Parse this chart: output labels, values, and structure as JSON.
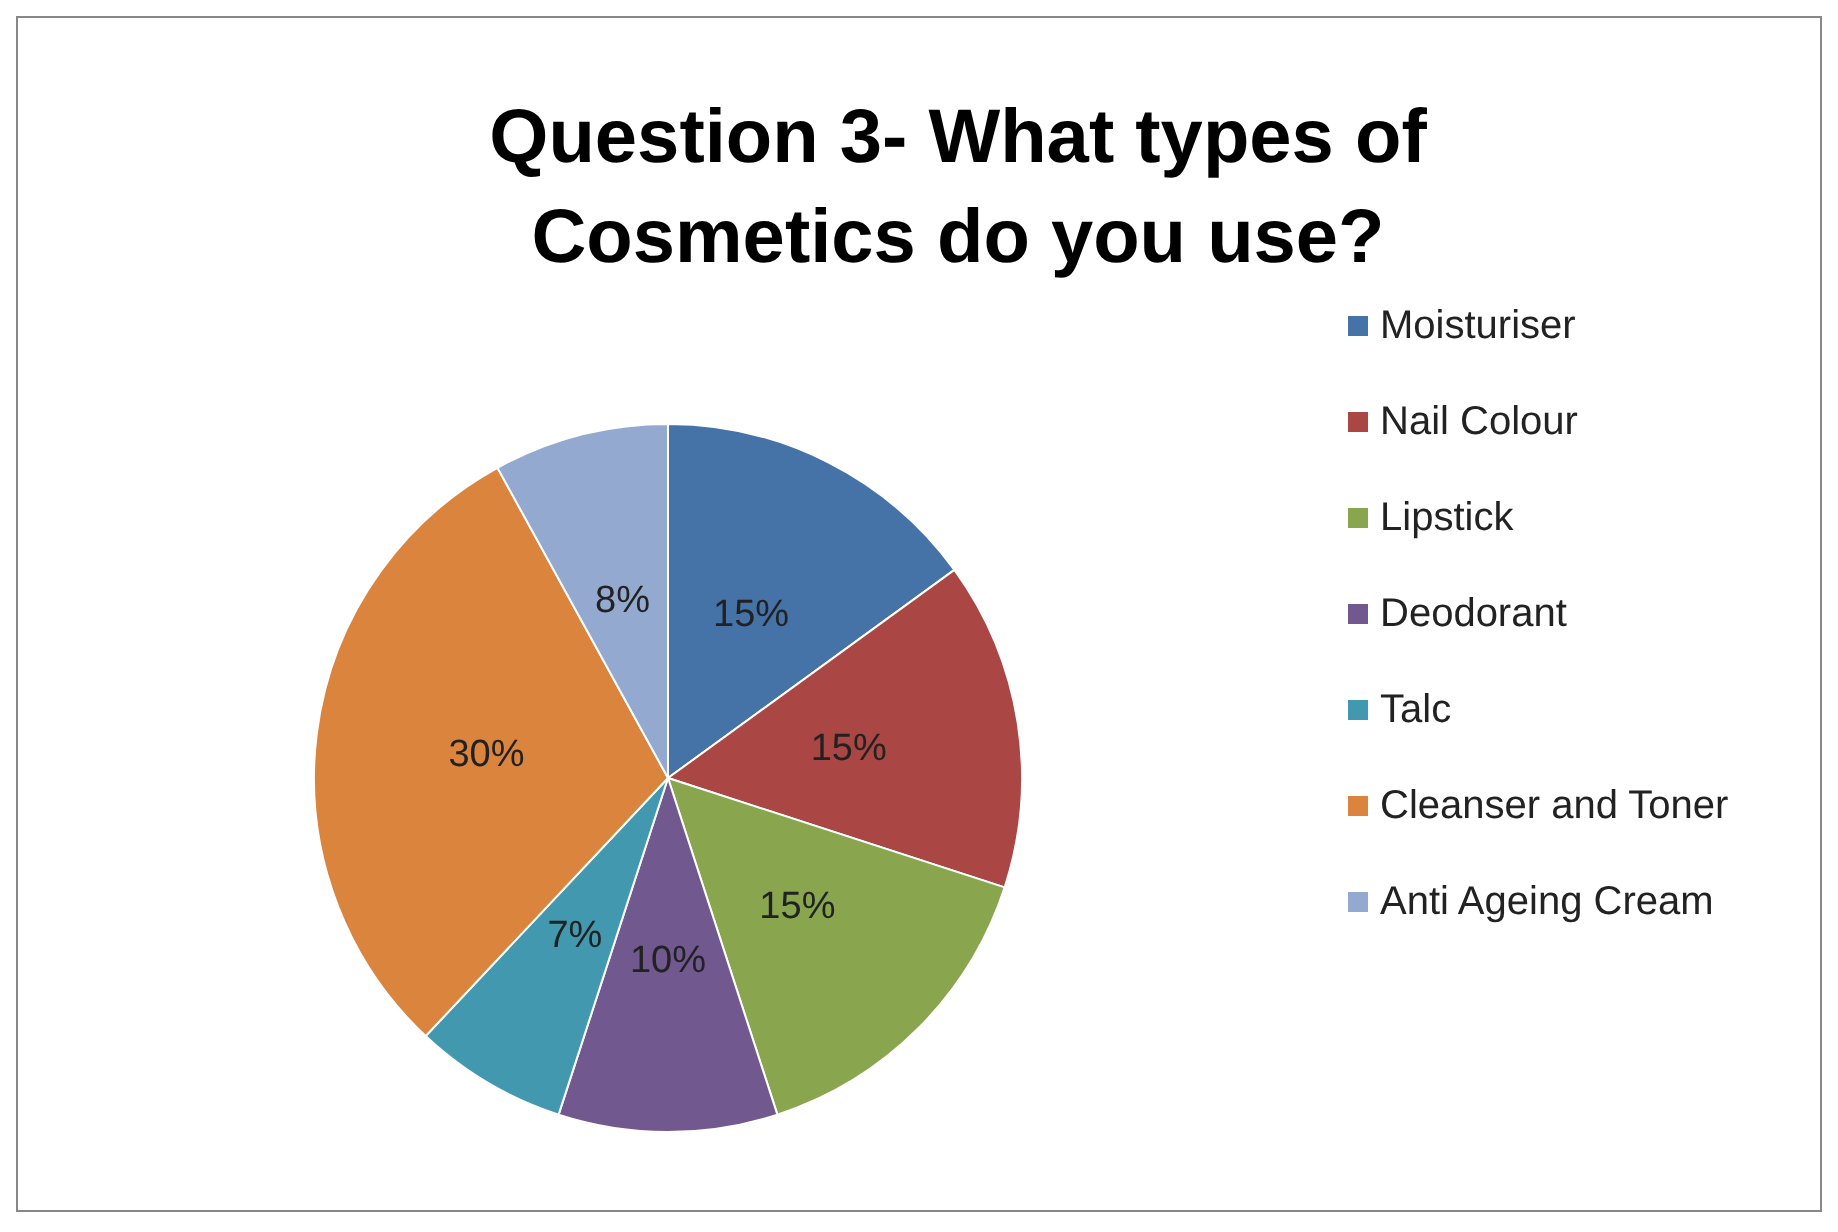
{
  "chart_data": {
    "type": "pie",
    "title": "Question 3- What types of\nCosmetics do you use?",
    "categories": [
      "Moisturiser",
      "Nail Colour",
      "Lipstick",
      "Deodorant",
      "Talc",
      "Cleanser and Toner",
      "Anti Ageing Cream"
    ],
    "values": [
      15,
      15,
      15,
      10,
      7,
      30,
      8
    ],
    "value_labels": [
      "15%",
      "15%",
      "15%",
      "10%",
      "7%",
      "30%",
      "8%"
    ],
    "colors": [
      "#4572a7",
      "#aa4643",
      "#89a54e",
      "#71588f",
      "#4198af",
      "#db843d",
      "#93a9cf"
    ],
    "legend": "right"
  }
}
